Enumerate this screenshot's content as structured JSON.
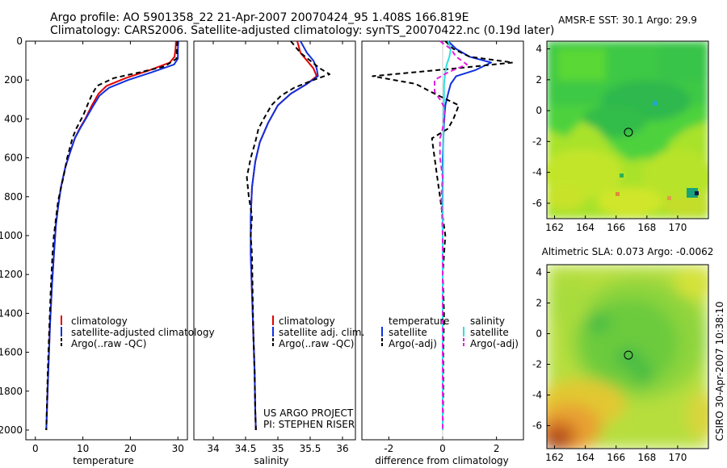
{
  "header": {
    "line1": "Argo profile: AO 5901358_22 21-Apr-2007 20070424_95 1.408S 166.819E",
    "line2": "Climatology: CARS2006. Satellite-adjusted climatology: synTS_20070422.nc (0.19d later)"
  },
  "colors": {
    "climatology": "#e00000",
    "satellite": "#1030e0",
    "argo": "#000000",
    "salinity_satellite": "#30e0e0",
    "salinity_argo": "#e020e0"
  },
  "chart_data": [
    {
      "id": "temperature",
      "type": "line",
      "xlabel": "temperature",
      "ylabel": "",
      "xlim": [
        -2,
        32
      ],
      "ylim": [
        2050,
        0
      ],
      "xticks": [
        0,
        10,
        20,
        30
      ],
      "yticks": [
        0,
        200,
        400,
        600,
        800,
        1000,
        1200,
        1400,
        1600,
        1800,
        2000
      ],
      "legend": [
        "climatology",
        "satellite-adjusted climatology",
        "Argo(..raw -QC)"
      ],
      "series": [
        {
          "name": "climatology",
          "color": "#e00000",
          "dash": "",
          "points": [
            [
              29.6,
              0
            ],
            [
              29.5,
              40
            ],
            [
              29.3,
              80
            ],
            [
              28.3,
              110
            ],
            [
              24,
              150
            ],
            [
              19,
              190
            ],
            [
              15,
              230
            ],
            [
              13.3,
              270
            ],
            [
              11.9,
              330
            ],
            [
              10.5,
              400
            ],
            [
              9.3,
              450
            ],
            [
              8.3,
              500
            ],
            [
              7.2,
              580
            ],
            [
              6.3,
              650
            ],
            [
              5.4,
              750
            ],
            [
              4.8,
              850
            ],
            [
              4.3,
              950
            ],
            [
              3.9,
              1100
            ],
            [
              3.5,
              1250
            ],
            [
              3.1,
              1450
            ],
            [
              2.8,
              1650
            ],
            [
              2.5,
              1850
            ],
            [
              2.3,
              2000
            ]
          ]
        },
        {
          "name": "satellite-adjusted climatology",
          "color": "#1030e0",
          "dash": "",
          "points": [
            [
              30.1,
              0
            ],
            [
              30.0,
              40
            ],
            [
              30.0,
              90
            ],
            [
              29.2,
              120
            ],
            [
              24.5,
              160
            ],
            [
              19.5,
              200
            ],
            [
              15.5,
              240
            ],
            [
              13.5,
              280
            ],
            [
              12.0,
              340
            ],
            [
              10.6,
              400
            ],
            [
              9.4,
              450
            ],
            [
              8.3,
              500
            ],
            [
              7.2,
              580
            ],
            [
              6.3,
              650
            ],
            [
              5.4,
              750
            ],
            [
              4.8,
              850
            ],
            [
              4.3,
              950
            ],
            [
              3.9,
              1100
            ],
            [
              3.5,
              1250
            ],
            [
              3.1,
              1450
            ],
            [
              2.8,
              1650
            ],
            [
              2.5,
              1850
            ],
            [
              2.3,
              2000
            ]
          ]
        },
        {
          "name": "Argo(..raw -QC)",
          "color": "#000000",
          "dash": "6,4",
          "points": [
            [
              29.9,
              0
            ],
            [
              29.8,
              40
            ],
            [
              29.7,
              90
            ],
            [
              27.2,
              130
            ],
            [
              22,
              160
            ],
            [
              16.5,
              190
            ],
            [
              13,
              230
            ],
            [
              12,
              270
            ],
            [
              11.1,
              320
            ],
            [
              10.1,
              380
            ],
            [
              8.6,
              450
            ],
            [
              7.8,
              500
            ],
            [
              6.7,
              600
            ],
            [
              5.9,
              700
            ],
            [
              4.8,
              820
            ],
            [
              4.4,
              900
            ],
            [
              3.9,
              1000
            ],
            [
              3.6,
              1100
            ],
            [
              3.2,
              1300
            ],
            [
              2.9,
              1500
            ],
            [
              2.6,
              1700
            ],
            [
              2.4,
              1900
            ],
            [
              2.3,
              2000
            ]
          ]
        }
      ]
    },
    {
      "id": "salinity",
      "type": "line",
      "xlabel": "salinity",
      "xlim": [
        33.7,
        36.2
      ],
      "ylim": [
        2050,
        0
      ],
      "xticks": [
        34,
        34.5,
        35,
        35.5,
        36
      ],
      "legend": [
        "climatology",
        "satellite adj. clim.",
        "Argo(..raw -QC)"
      ],
      "series": [
        {
          "name": "climatology",
          "color": "#e00000",
          "dash": "",
          "points": [
            [
              35.3,
              0
            ],
            [
              35.35,
              60
            ],
            [
              35.45,
              100
            ],
            [
              35.55,
              140
            ],
            [
              35.6,
              180
            ],
            [
              35.45,
              220
            ],
            [
              35.2,
              270
            ],
            [
              35.0,
              330
            ],
            [
              34.85,
              420
            ],
            [
              34.72,
              520
            ],
            [
              34.65,
              620
            ],
            [
              34.6,
              750
            ],
            [
              34.58,
              900
            ],
            [
              34.58,
              1100
            ],
            [
              34.6,
              1300
            ],
            [
              34.62,
              1500
            ],
            [
              34.64,
              1700
            ],
            [
              34.65,
              1900
            ],
            [
              34.66,
              2000
            ]
          ]
        },
        {
          "name": "satellite adj. clim.",
          "color": "#1030e0",
          "dash": "",
          "points": [
            [
              35.35,
              0
            ],
            [
              35.45,
              60
            ],
            [
              35.55,
              100
            ],
            [
              35.6,
              140
            ],
            [
              35.62,
              180
            ],
            [
              35.45,
              220
            ],
            [
              35.2,
              270
            ],
            [
              35.0,
              330
            ],
            [
              34.85,
              420
            ],
            [
              34.72,
              520
            ],
            [
              34.65,
              620
            ],
            [
              34.6,
              750
            ],
            [
              34.58,
              900
            ],
            [
              34.58,
              1100
            ],
            [
              34.6,
              1300
            ],
            [
              34.62,
              1500
            ],
            [
              34.64,
              1700
            ],
            [
              34.65,
              1900
            ],
            [
              34.66,
              2000
            ]
          ]
        },
        {
          "name": "Argo(..raw -QC)",
          "color": "#000000",
          "dash": "6,4",
          "points": [
            [
              35.2,
              0
            ],
            [
              35.35,
              60
            ],
            [
              35.5,
              100
            ],
            [
              35.65,
              140
            ],
            [
              35.8,
              170
            ],
            [
              35.55,
              200
            ],
            [
              35.25,
              240
            ],
            [
              35.05,
              280
            ],
            [
              34.9,
              330
            ],
            [
              34.78,
              400
            ],
            [
              34.7,
              450
            ],
            [
              34.65,
              520
            ],
            [
              34.58,
              600
            ],
            [
              34.52,
              700
            ],
            [
              34.55,
              800
            ],
            [
              34.6,
              900
            ],
            [
              34.58,
              1000
            ],
            [
              34.6,
              1100
            ],
            [
              34.61,
              1300
            ],
            [
              34.62,
              1500
            ],
            [
              34.64,
              1700
            ],
            [
              34.65,
              1900
            ],
            [
              34.66,
              2000
            ]
          ]
        }
      ]
    },
    {
      "id": "difference",
      "type": "line",
      "xlabel": "difference from climatology",
      "xlim": [
        -3,
        3
      ],
      "ylim": [
        2050,
        0
      ],
      "xticks": [
        -2,
        0,
        2
      ],
      "legend_columns": [
        {
          "title": "temperature",
          "items": [
            "satellite",
            "Argo(-adj)"
          ]
        },
        {
          "title": "salinity",
          "items": [
            "satellite",
            "Argo(-adj)"
          ]
        }
      ],
      "series": [
        {
          "name": "temperature satellite",
          "color": "#1030e0",
          "dash": "",
          "points": [
            [
              0.2,
              0
            ],
            [
              0.5,
              40
            ],
            [
              1.0,
              80
            ],
            [
              1.8,
              110
            ],
            [
              1.2,
              150
            ],
            [
              0.5,
              180
            ],
            [
              0.3,
              220
            ],
            [
              0.2,
              270
            ],
            [
              0.1,
              330
            ],
            [
              0.05,
              420
            ],
            [
              0,
              600
            ],
            [
              0,
              800
            ],
            [
              0,
              1000
            ],
            [
              0,
              1200
            ],
            [
              0,
              1400
            ],
            [
              0,
              1600
            ],
            [
              0,
              1800
            ],
            [
              0,
              2000
            ]
          ]
        },
        {
          "name": "temperature Argo(-adj)",
          "color": "#000000",
          "dash": "6,4",
          "points": [
            [
              0.1,
              0
            ],
            [
              0.4,
              40
            ],
            [
              1.0,
              80
            ],
            [
              2.6,
              110
            ],
            [
              0.5,
              140
            ],
            [
              -2.6,
              180
            ],
            [
              -1.0,
              220
            ],
            [
              -0.3,
              270
            ],
            [
              0.6,
              330
            ],
            [
              0.4,
              400
            ],
            [
              0.2,
              450
            ],
            [
              -0.4,
              500
            ],
            [
              -0.3,
              600
            ],
            [
              -0.2,
              700
            ],
            [
              -0.1,
              800
            ],
            [
              0.0,
              900
            ],
            [
              0.1,
              1000
            ],
            [
              0.0,
              1200
            ],
            [
              0.05,
              1400
            ],
            [
              0.02,
              1600
            ],
            [
              0.02,
              1800
            ],
            [
              0.0,
              2000
            ]
          ]
        },
        {
          "name": "salinity satellite",
          "color": "#30e0e0",
          "dash": "",
          "points": [
            [
              0.2,
              0
            ],
            [
              0.3,
              40
            ],
            [
              0.25,
              80
            ],
            [
              0.15,
              120
            ],
            [
              0.1,
              160
            ],
            [
              0.05,
              220
            ],
            [
              0.05,
              300
            ],
            [
              0.03,
              400
            ],
            [
              0.02,
              600
            ],
            [
              0.01,
              800
            ],
            [
              0,
              1000
            ],
            [
              0,
              1200
            ],
            [
              0,
              1400
            ],
            [
              0,
              1600
            ],
            [
              0,
              1800
            ],
            [
              0,
              2000
            ]
          ]
        },
        {
          "name": "salinity Argo(-adj)",
          "color": "#e020e0",
          "dash": "6,4",
          "points": [
            [
              -0.1,
              0
            ],
            [
              0.3,
              40
            ],
            [
              0.5,
              80
            ],
            [
              0.9,
              120
            ],
            [
              0.2,
              160
            ],
            [
              -0.3,
              200
            ],
            [
              -0.3,
              260
            ],
            [
              -0.1,
              300
            ],
            [
              0.1,
              350
            ],
            [
              0.0,
              450
            ],
            [
              -0.1,
              500
            ],
            [
              -0.1,
              600
            ],
            [
              0.0,
              700
            ],
            [
              -0.05,
              800
            ],
            [
              -0.02,
              900
            ],
            [
              0,
              1000
            ],
            [
              0,
              1200
            ],
            [
              0,
              1400
            ],
            [
              0,
              1600
            ],
            [
              0,
              1800
            ],
            [
              0,
              2000
            ]
          ]
        }
      ]
    },
    {
      "id": "sst_map",
      "type": "heatmap",
      "title": "AMSR-E SST: 30.1 Argo: 29.9",
      "xlim": [
        161.5,
        172
      ],
      "ylim": [
        -7,
        4.5
      ],
      "xticks": [
        162,
        164,
        166,
        168,
        170
      ],
      "yticks": [
        -6,
        -4,
        -2,
        0,
        2,
        4
      ],
      "marker": [
        166.8,
        -1.4
      ]
    },
    {
      "id": "sla_map",
      "type": "heatmap",
      "title": "Altimetric SLA: 0.073 Argo: -0.0062",
      "xlim": [
        161.5,
        172
      ],
      "ylim": [
        -7.5,
        4.5
      ],
      "xticks": [
        162,
        164,
        166,
        168,
        170
      ],
      "yticks": [
        -6,
        -4,
        -2,
        0,
        2,
        4
      ],
      "marker": [
        166.8,
        -1.4
      ]
    }
  ],
  "annotations": {
    "project": "US ARGO PROJECT",
    "pi": "PI: STEPHEN RISER",
    "credit": "CSIRO 30-Apr-2007 10:38:10"
  }
}
